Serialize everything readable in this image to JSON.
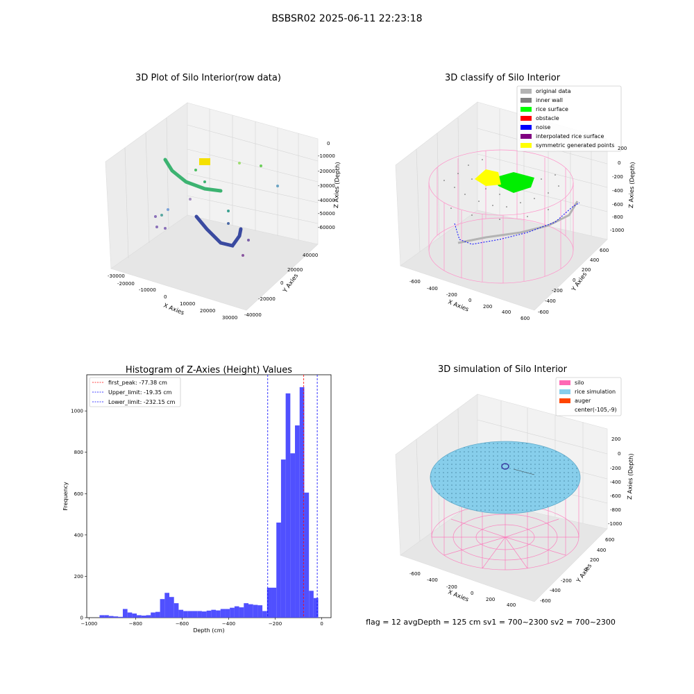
{
  "figure": {
    "suptitle": "BSBSR02 2025-06-11 22:23:18",
    "status_line": "flag = 12   avgDepth = 125 cm  sv1 = 700~2300  sv2 = 700~2300"
  },
  "panels": {
    "raw": {
      "title": "3D Plot of Silo Interior(row data)",
      "xlabel": "X Axies",
      "ylabel": "Y Axies",
      "zlabel": "Z Axies (Depth)",
      "xticks": [
        "-30000",
        "-20000",
        "-10000",
        "0",
        "10000",
        "20000",
        "30000"
      ],
      "yticks": [
        "-40000",
        "-20000",
        "0",
        "20000",
        "40000"
      ],
      "zticks": [
        "0",
        "-10000",
        "-20000",
        "-30000",
        "-40000",
        "-50000",
        "-60000"
      ]
    },
    "classify": {
      "title": "3D classify of Silo Interior",
      "xlabel": "X Axies",
      "ylabel": "Y Axies",
      "zlabel": "Z Axies (Depth)",
      "xticks": [
        "-600",
        "-400",
        "-200",
        "0",
        "200",
        "400",
        "600"
      ],
      "yticks": [
        "-600",
        "-400",
        "-200",
        "0",
        "200",
        "400",
        "600"
      ],
      "zticks": [
        "200",
        "0",
        "-200",
        "-400",
        "-600",
        "-800",
        "-1000"
      ],
      "legend": [
        {
          "label": "original data",
          "color": "#b3b3b3"
        },
        {
          "label": "inner wall",
          "color": "#808080"
        },
        {
          "label": "rice surface",
          "color": "#00ff00"
        },
        {
          "label": "obstacle",
          "color": "#ff0000"
        },
        {
          "label": "noise",
          "color": "#0000ff"
        },
        {
          "label": "interpolated rice surface",
          "color": "#800080"
        },
        {
          "label": "symmetric generated points",
          "color": "#ffff00"
        }
      ]
    },
    "simulation": {
      "title": "3D simulation of Silo Interior",
      "xlabel": "X Axies",
      "ylabel": "Y Axies",
      "zlabel": "Z Axies (Depth)",
      "xticks": [
        "-600",
        "-400",
        "-200",
        "0",
        "200",
        "400"
      ],
      "yticks": [
        "-600",
        "-400",
        "-200",
        "0",
        "200",
        "400",
        "600"
      ],
      "zticks": [
        "200",
        "0",
        "-200",
        "-400",
        "-600",
        "-800",
        "-1000"
      ],
      "legend": [
        {
          "label": "silo",
          "color": "#ff69b4"
        },
        {
          "label": "rice simulation",
          "color": "#87ceeb"
        },
        {
          "label": "auger",
          "color": "#ff4500"
        },
        {
          "label": "center(-105,-9)",
          "color": ""
        }
      ]
    }
  },
  "chart_data": {
    "type": "bar",
    "title": "Histogram of Z-Axies (Height) Values",
    "xlabel": "Depth (cm)",
    "ylabel": "Frequency",
    "xlim": [
      -1010,
      40
    ],
    "ylim": [
      0,
      1175
    ],
    "xticks": [
      -1000,
      -800,
      -600,
      -400,
      -200,
      0
    ],
    "yticks": [
      0,
      200,
      400,
      600,
      800,
      1000
    ],
    "bin_edges": [
      -955,
      -935,
      -915,
      -895,
      -875,
      -855,
      -835,
      -815,
      -795,
      -775,
      -755,
      -735,
      -715,
      -695,
      -675,
      -655,
      -635,
      -615,
      -595,
      -575,
      -555,
      -535,
      -515,
      -495,
      -475,
      -455,
      -435,
      -415,
      -395,
      -375,
      -355,
      -335,
      -315,
      -295,
      -275,
      -255,
      -235,
      -215,
      -195,
      -175,
      -155,
      -135,
      -115,
      -95,
      -75,
      -55,
      -35,
      -15,
      5
    ],
    "values": [
      12,
      12,
      8,
      6,
      4,
      42,
      25,
      20,
      12,
      10,
      12,
      25,
      28,
      90,
      120,
      100,
      70,
      38,
      32,
      32,
      32,
      32,
      30,
      34,
      38,
      35,
      42,
      42,
      48,
      55,
      50,
      70,
      65,
      62,
      60,
      32,
      145,
      145,
      460,
      765,
      1085,
      795,
      930,
      1115,
      605,
      130,
      95,
      0
    ],
    "series": [
      {
        "name": "first_peak: -77.38 cm",
        "value": -77.38,
        "color": "#ff0000"
      },
      {
        "name": "Upper_limit: -19.35 cm",
        "value": -19.35,
        "color": "#0000ff"
      },
      {
        "name": "Lower_limit: -232.15 cm",
        "value": -232.15,
        "color": "#0000ff"
      }
    ],
    "bar_color": "#4d4dff",
    "legend_position": "upper-left",
    "grid": false
  }
}
